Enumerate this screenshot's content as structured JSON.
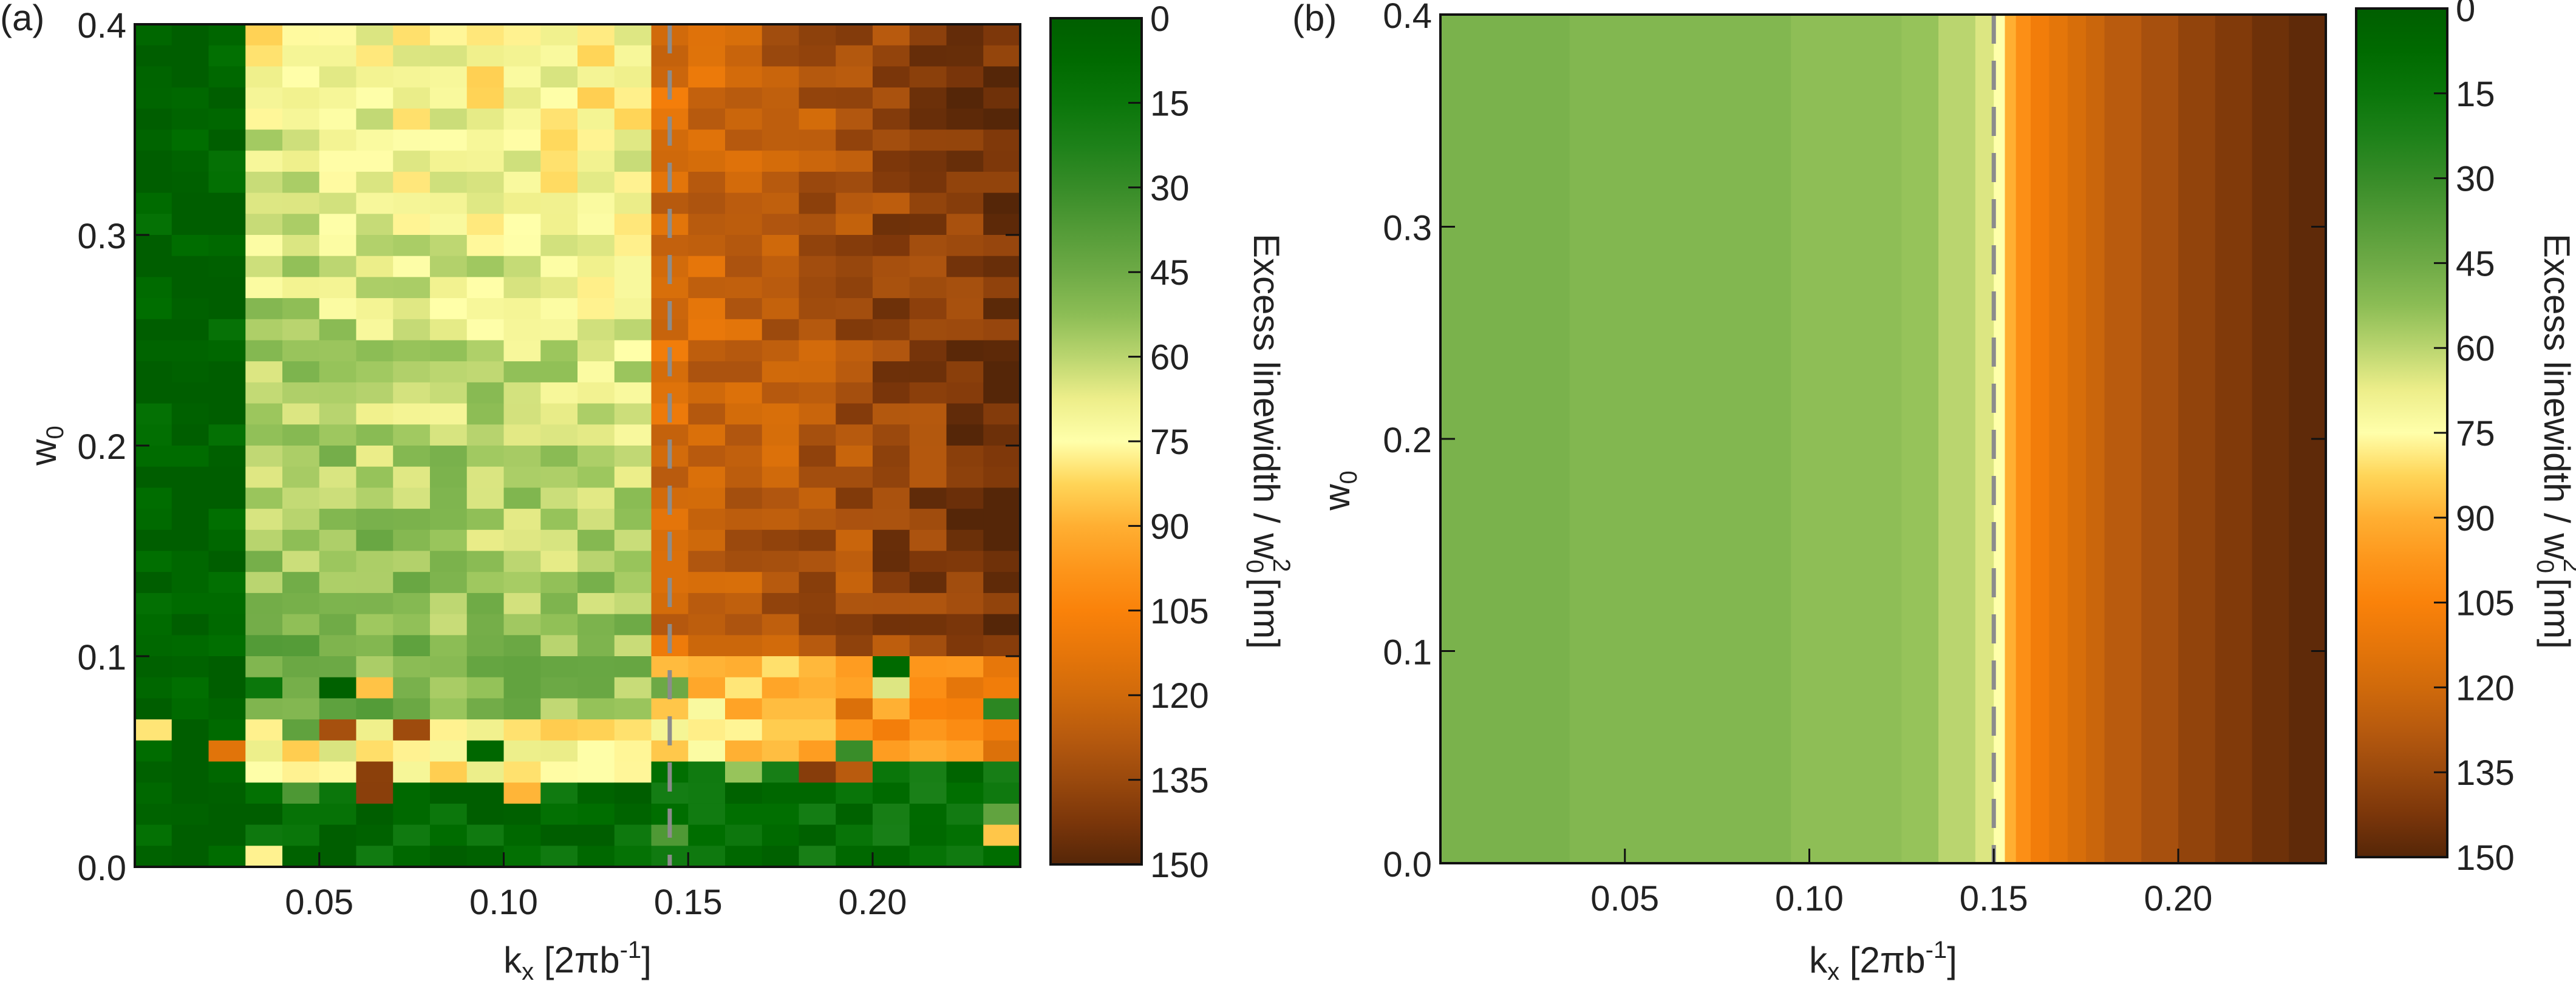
{
  "chart_data": [
    {
      "type": "heatmap",
      "panel_label": "(a)",
      "title": "",
      "xlabel": "k_x [2πb^-1]",
      "xlabel_main": "k",
      "xlabel_sub": "x",
      "xlabel_rest": " [2πb",
      "xlabel_sup": "-1",
      "xlabel_end": "]",
      "ylabel": "w_0",
      "ylabel_main": "w",
      "ylabel_sub": "0",
      "xlim": [
        0.0,
        0.24
      ],
      "ylim": [
        0.0,
        0.4
      ],
      "x_ticks": [
        0.05,
        0.1,
        0.15,
        0.2
      ],
      "x_tick_labels": [
        "0.05",
        "0.10",
        "0.15",
        "0.20"
      ],
      "y_ticks": [
        0.0,
        0.1,
        0.2,
        0.3,
        0.4
      ],
      "y_tick_labels": [
        "0.0",
        "0.1",
        "0.2",
        "0.3",
        "0.4"
      ],
      "dashed_line_x": 0.145,
      "grid": {
        "nx": 24,
        "ny": 40
      },
      "value_summary": "Excess linewidth / w0^2 per (kx, w0) cell: ~0 for kx < 0.035 (green column); 40-75 (light green to yellow) for 0.035 < kx < 0.145 and w0 > 0.07, with a yellow band near w0 ≈ 0.05; 105-150 (orange to brown) for kx > 0.145; noisy mixed values for w0 < 0.1.",
      "colorbar": {
        "label": "Excess linewidth / w0^2 [nm]",
        "label_main": "Excess linewidth / w",
        "label_sub": "0",
        "label_sup": "2",
        "label_end": "[nm]",
        "min": 0,
        "max": 150,
        "ticks": [
          0,
          15,
          30,
          45,
          60,
          75,
          90,
          105,
          120,
          135,
          150
        ],
        "tick_labels": [
          "0",
          "15",
          "30",
          "45",
          "60",
          "75",
          "90",
          "105",
          "120",
          "135",
          "150"
        ]
      }
    },
    {
      "type": "heatmap",
      "panel_label": "(b)",
      "title": "",
      "xlabel": "k_x [2πb^-1]",
      "xlabel_main": "k",
      "xlabel_sub": "x",
      "xlabel_rest": " [2πb",
      "xlabel_sup": "-1",
      "xlabel_end": "]",
      "ylabel": "w_0",
      "ylabel_main": "w",
      "ylabel_sub": "0",
      "xlim": [
        0.0,
        0.24
      ],
      "ylim": [
        0.0,
        0.4
      ],
      "x_ticks": [
        0.05,
        0.1,
        0.15,
        0.2
      ],
      "x_tick_labels": [
        "0.05",
        "0.10",
        "0.15",
        "0.20"
      ],
      "y_ticks": [
        0.0,
        0.1,
        0.2,
        0.3,
        0.4
      ],
      "y_tick_labels": [
        "0.0",
        "0.1",
        "0.2",
        "0.3",
        "0.4"
      ],
      "dashed_line_x": 0.15,
      "value_summary": "Values independent of w0 (vertical bands): 45-55 for kx < 0.15; jumps to ~75 at kx = 0.15 and rises to ~150 at kx = 0.24.",
      "column_x": [
        0.0,
        0.035,
        0.05,
        0.08,
        0.095,
        0.11,
        0.125,
        0.135,
        0.145,
        0.15,
        0.153,
        0.156,
        0.16,
        0.165,
        0.17,
        0.175,
        0.18,
        0.19,
        0.2,
        0.21,
        0.22,
        0.23,
        0.24
      ],
      "column_values": [
        48,
        50,
        50,
        50,
        53,
        53,
        55,
        60,
        65,
        75,
        90,
        100,
        108,
        113,
        118,
        122,
        127,
        132,
        137,
        141,
        145,
        148
      ],
      "colorbar": {
        "label": "Excess linewidth / w0^2 [nm]",
        "label_main": "Excess linewidth / w",
        "label_sub": "0",
        "label_sup": "2",
        "label_end": "[nm]",
        "min": 0,
        "max": 150,
        "ticks": [
          0,
          15,
          30,
          45,
          60,
          75,
          90,
          105,
          120,
          135,
          150
        ],
        "tick_labels": [
          "0",
          "15",
          "30",
          "45",
          "60",
          "75",
          "90",
          "105",
          "120",
          "135",
          "150"
        ]
      }
    }
  ]
}
